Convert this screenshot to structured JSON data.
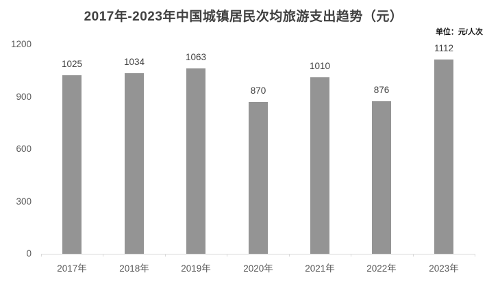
{
  "chart_data": {
    "type": "bar",
    "title": "2017年-2023年中国城镇居民次均旅游支出趋势（元）",
    "unit_label": "单位：元/人次",
    "categories": [
      "2017年",
      "2018年",
      "2019年",
      "2020年",
      "2021年",
      "2022年",
      "2023年"
    ],
    "values": [
      1025,
      1034,
      1063,
      870,
      1010,
      876,
      1112
    ],
    "xlabel": "",
    "ylabel": "",
    "ylim": [
      0,
      1200
    ],
    "yticks": [
      0,
      300,
      600,
      900,
      1200
    ],
    "grid": false,
    "legend": "none",
    "colors": {
      "bar": "#949494",
      "title": "#404040",
      "value_label": "#404040",
      "tick_label": "#595959",
      "axis_line": "#d9d9d9",
      "unit_label": "#111111",
      "background": "#ffffff"
    }
  }
}
